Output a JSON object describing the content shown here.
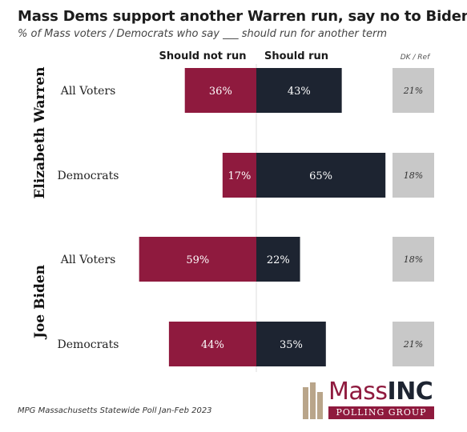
{
  "title": "Mass Dems support another Warren run, say no to Biden",
  "subtitle": "% of Mass voters / Democrats who say ___ should run for another term",
  "headers": {
    "should_not_run": "Should not run",
    "should_run": "Should run",
    "dk_ref": "DK / Ref"
  },
  "colors": {
    "should_not_run": "#8f1a3e",
    "should_run": "#1d2431",
    "dk_ref": "#c8c8c8"
  },
  "source": "MPG Massachusetts Statewide Poll Jan-Feb 2023",
  "logo": {
    "brand_light": "Mass",
    "brand_bold": "INC",
    "tagline": "POLLING GROUP"
  },
  "chart_data": {
    "type": "bar",
    "orientation": "horizontal-diverging",
    "groups": [
      "Elizabeth Warren",
      "Joe Biden"
    ],
    "categories": [
      "All Voters",
      "Democrats"
    ],
    "series": [
      {
        "name": "Should not run",
        "values": [
          [
            36,
            17
          ],
          [
            59,
            44
          ]
        ],
        "labels": [
          [
            "36%",
            "17%"
          ],
          [
            "59%",
            "44%"
          ]
        ]
      },
      {
        "name": "Should run",
        "values": [
          [
            43,
            65
          ],
          [
            22,
            35
          ]
        ],
        "labels": [
          [
            "43%",
            "65%"
          ],
          [
            "22%",
            "35%"
          ]
        ]
      },
      {
        "name": "DK / Ref",
        "values": [
          [
            21,
            18
          ],
          [
            18,
            21
          ]
        ],
        "labels": [
          [
            "21%",
            "18%"
          ],
          [
            "18%",
            "21%"
          ]
        ]
      }
    ],
    "legend": "top"
  }
}
